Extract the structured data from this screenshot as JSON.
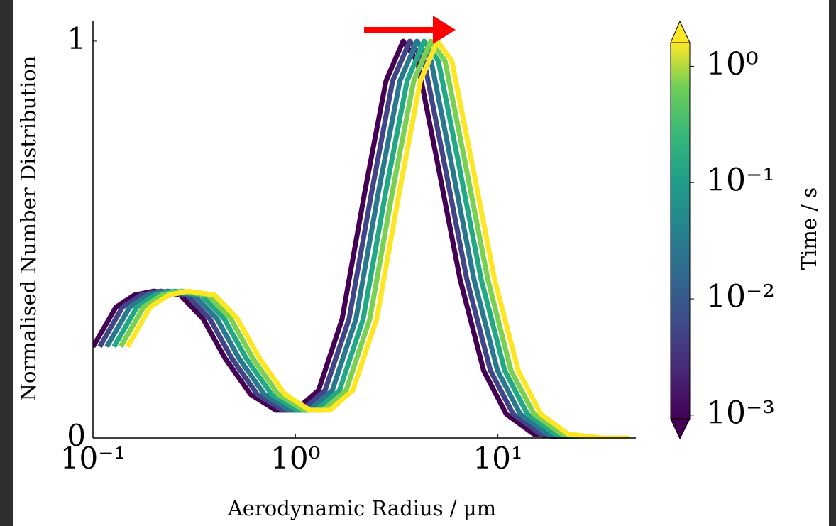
{
  "chart_data": {
    "type": "line",
    "xlabel": "Aerodynamic Radius / μm",
    "ylabel": "Normalised Number Distribution",
    "xscale": "log",
    "xlim": [
      0.1,
      48
    ],
    "ylim": [
      0,
      1.05
    ],
    "xticks": [
      {
        "value": 0.1,
        "label": "10⁻¹"
      },
      {
        "value": 1,
        "label": "10⁰"
      },
      {
        "value": 10,
        "label": "10¹"
      }
    ],
    "yticks": [
      0,
      1
    ],
    "series": [
      {
        "color": "#440154",
        "x": [
          0.1,
          0.13,
          0.16,
          0.2,
          0.27,
          0.35,
          0.45,
          0.6,
          0.8,
          1.0,
          1.3,
          1.7,
          2.2,
          2.8,
          3.4,
          4.0,
          5.0,
          6.5,
          8.5,
          11,
          15,
          22,
          30
        ],
        "values": [
          0.23,
          0.33,
          0.36,
          0.37,
          0.36,
          0.3,
          0.2,
          0.11,
          0.07,
          0.07,
          0.12,
          0.3,
          0.62,
          0.9,
          1.0,
          0.95,
          0.7,
          0.4,
          0.17,
          0.06,
          0.01,
          0,
          0
        ]
      },
      {
        "color": "#414487",
        "x": [
          0.108,
          0.14,
          0.173,
          0.216,
          0.292,
          0.378,
          0.486,
          0.648,
          0.864,
          1.08,
          1.4,
          1.84,
          2.38,
          3.02,
          3.67,
          4.32,
          5.4,
          7.02,
          9.18,
          11.9,
          16.2,
          23.8,
          32.4
        ],
        "values": [
          0.23,
          0.33,
          0.36,
          0.37,
          0.36,
          0.3,
          0.2,
          0.11,
          0.07,
          0.07,
          0.12,
          0.3,
          0.62,
          0.9,
          1.0,
          0.95,
          0.7,
          0.4,
          0.17,
          0.06,
          0.01,
          0,
          0
        ]
      },
      {
        "color": "#2a788e",
        "x": [
          0.117,
          0.152,
          0.187,
          0.234,
          0.316,
          0.41,
          0.527,
          0.702,
          0.936,
          1.17,
          1.52,
          1.99,
          2.57,
          3.28,
          3.98,
          4.68,
          5.85,
          7.61,
          9.95,
          12.9,
          17.6,
          25.7,
          35.1
        ],
        "values": [
          0.23,
          0.33,
          0.36,
          0.37,
          0.36,
          0.3,
          0.2,
          0.11,
          0.07,
          0.07,
          0.12,
          0.3,
          0.62,
          0.9,
          1.0,
          0.95,
          0.7,
          0.4,
          0.17,
          0.06,
          0.01,
          0,
          0
        ]
      },
      {
        "color": "#22a884",
        "x": [
          0.127,
          0.165,
          0.203,
          0.254,
          0.343,
          0.445,
          0.572,
          0.762,
          1.02,
          1.27,
          1.65,
          2.16,
          2.79,
          3.56,
          4.32,
          5.08,
          6.35,
          8.26,
          10.8,
          14.0,
          19.1,
          27.9,
          38.1
        ],
        "values": [
          0.23,
          0.33,
          0.36,
          0.37,
          0.36,
          0.3,
          0.2,
          0.11,
          0.07,
          0.07,
          0.12,
          0.3,
          0.62,
          0.9,
          1.0,
          0.95,
          0.7,
          0.4,
          0.17,
          0.06,
          0.01,
          0,
          0
        ]
      },
      {
        "color": "#7ad151",
        "x": [
          0.137,
          0.178,
          0.219,
          0.274,
          0.37,
          0.48,
          0.617,
          0.822,
          1.1,
          1.37,
          1.78,
          2.33,
          3.01,
          3.84,
          4.66,
          5.48,
          6.85,
          8.91,
          11.6,
          15.1,
          20.6,
          30.1,
          41.1
        ],
        "values": [
          0.23,
          0.33,
          0.36,
          0.37,
          0.36,
          0.3,
          0.2,
          0.11,
          0.07,
          0.07,
          0.12,
          0.3,
          0.62,
          0.9,
          1.0,
          0.95,
          0.7,
          0.4,
          0.17,
          0.06,
          0.01,
          0,
          0
        ]
      },
      {
        "color": "#fde725",
        "x": [
          0.148,
          0.192,
          0.237,
          0.296,
          0.4,
          0.518,
          0.666,
          0.888,
          1.18,
          1.48,
          1.92,
          2.52,
          3.26,
          4.14,
          5.03,
          5.92,
          7.4,
          9.62,
          12.6,
          16.3,
          22.2,
          32.6,
          44.4
        ],
        "values": [
          0.23,
          0.33,
          0.36,
          0.37,
          0.36,
          0.3,
          0.2,
          0.11,
          0.07,
          0.07,
          0.12,
          0.3,
          0.62,
          0.9,
          1.0,
          0.95,
          0.7,
          0.4,
          0.17,
          0.06,
          0.01,
          0,
          0
        ]
      }
    ],
    "colorbar": {
      "label": "Time / s",
      "scale": "log",
      "colormap": "viridis",
      "lim": [
        0.00093,
        1.6
      ],
      "ticks": [
        {
          "value": 0.001,
          "label": "10⁻³"
        },
        {
          "value": 0.01,
          "label": "10⁻²"
        },
        {
          "value": 0.1,
          "label": "10⁻¹"
        },
        {
          "value": 1,
          "label": "10⁰"
        }
      ]
    }
  }
}
